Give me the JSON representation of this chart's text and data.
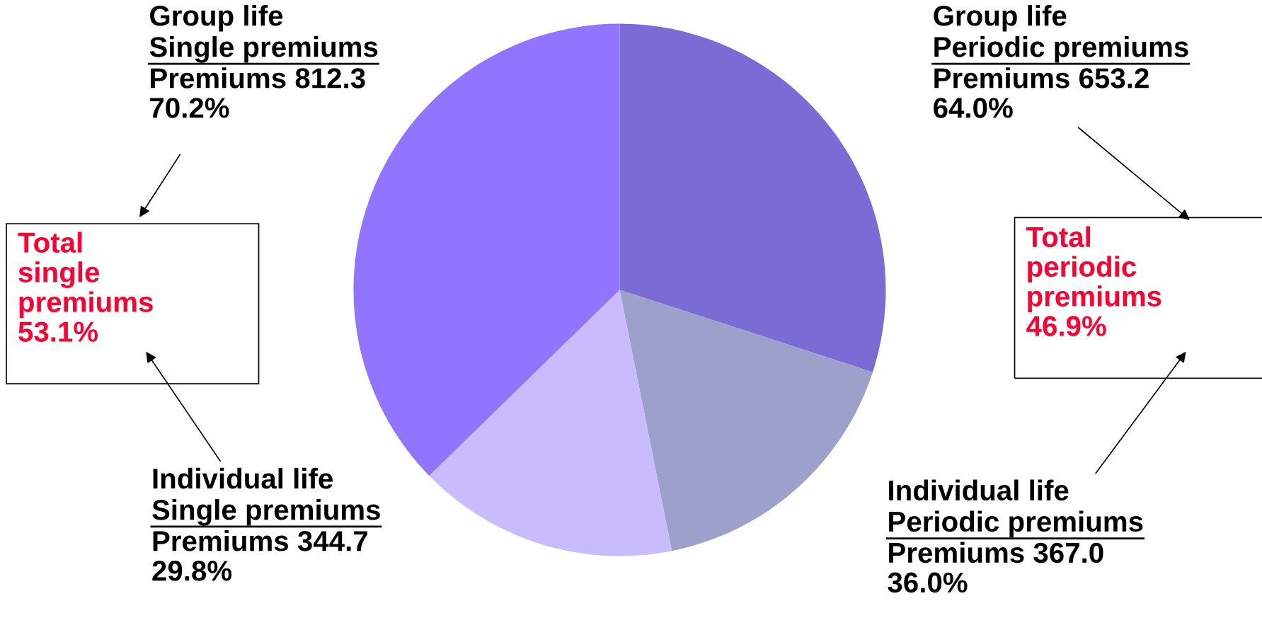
{
  "chart_data": {
    "type": "pie",
    "categories": [
      "Group life\nPeriodic premiums",
      "Individual life\nPeriodic premiums",
      "Individual life\nSingle premiums",
      "Group life\nSingle premiums"
    ],
    "values": [
      653.2,
      367.0,
      344.7,
      812.3
    ],
    "colors": [
      "#7b6bd4",
      "#9ea0cc",
      "#c8bcff",
      "#9175ff"
    ],
    "value_labels": [
      "Premiums 653.2\n64.0%",
      "Premiums 367.0\n36.0%",
      "Premiums 344.7\n29.8%",
      "Premiums 812.3\n70.2%"
    ],
    "annotations": [
      "Total\nsingle\npremiums\n53.1%",
      "Total\nperiodic\npremiums\n46.9%"
    ]
  }
}
